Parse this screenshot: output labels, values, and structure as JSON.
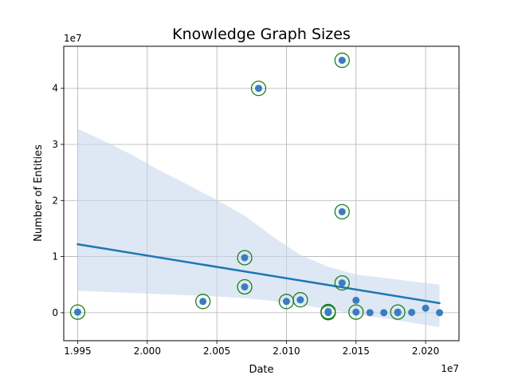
{
  "chart_data": {
    "type": "scatter",
    "title": "Knowledge Graph Sizes",
    "xlabel": "Date",
    "ylabel": "Number of Entities",
    "x_offset_text": "1e7",
    "y_offset_text": "1e7",
    "xlim": [
      19940000,
      20224000
    ],
    "ylim": [
      -5000000,
      47500000
    ],
    "xticks": [
      19950000,
      20000000,
      20050000,
      20100000,
      20150000,
      20200000
    ],
    "xtick_labels": [
      "1.995",
      "2.000",
      "2.005",
      "2.010",
      "2.015",
      "2.020"
    ],
    "yticks": [
      0,
      10000000,
      20000000,
      30000000,
      40000000
    ],
    "ytick_labels": [
      "0",
      "1",
      "2",
      "3",
      "4"
    ],
    "grid": true,
    "colors": {
      "point": "#3a7dbf",
      "regression": "#1f77b4",
      "band": "#c6d9ec",
      "ring": "#1a7f1a"
    },
    "points": [
      {
        "x": 19950000,
        "y": 100000,
        "ring": true
      },
      {
        "x": 20040000,
        "y": 2000000,
        "ring": true
      },
      {
        "x": 20080000,
        "y": 40000000,
        "ring": true
      },
      {
        "x": 20070000,
        "y": 9800000,
        "ring": true
      },
      {
        "x": 20070000,
        "y": 4600000,
        "ring": true
      },
      {
        "x": 20100000,
        "y": 2000000,
        "ring": true
      },
      {
        "x": 20110000,
        "y": 2300000,
        "ring": true
      },
      {
        "x": 20130000,
        "y": 100000,
        "ring": true
      },
      {
        "x": 20130000,
        "y": 0,
        "ring": true
      },
      {
        "x": 20130000,
        "y": 200000,
        "ring": true
      },
      {
        "x": 20140000,
        "y": 45000000,
        "ring": true
      },
      {
        "x": 20140000,
        "y": 18000000,
        "ring": true
      },
      {
        "x": 20140000,
        "y": 5300000,
        "ring": true
      },
      {
        "x": 20150000,
        "y": 2200000,
        "ring": false
      },
      {
        "x": 20150000,
        "y": 100000,
        "ring": true
      },
      {
        "x": 20160000,
        "y": 0,
        "ring": false
      },
      {
        "x": 20170000,
        "y": 0,
        "ring": false
      },
      {
        "x": 20180000,
        "y": 100000,
        "ring": true
      },
      {
        "x": 20180000,
        "y": 0,
        "ring": false
      },
      {
        "x": 20190000,
        "y": 50000,
        "ring": false
      },
      {
        "x": 20200000,
        "y": 800000,
        "ring": false
      },
      {
        "x": 20210000,
        "y": 0,
        "ring": false
      }
    ],
    "regression": {
      "x": [
        19950000,
        20210000
      ],
      "y": [
        12200000,
        1700000
      ]
    },
    "confidence_band": {
      "x": [
        19950000,
        19970000,
        19990000,
        20010000,
        20030000,
        20050000,
        20070000,
        20090000,
        20110000,
        20130000,
        20150000,
        20170000,
        20190000,
        20210000
      ],
      "upper": [
        32800000,
        30500000,
        28000000,
        25200000,
        22700000,
        20100000,
        17300000,
        13600000,
        10300000,
        8200000,
        6800000,
        6200000,
        5600000,
        5000000
      ],
      "lower": [
        3900000,
        3700000,
        3500000,
        3300000,
        3100000,
        2900000,
        2600000,
        2100000,
        1400000,
        600000,
        -300000,
        -1000000,
        -1800000,
        -2600000
      ]
    }
  }
}
